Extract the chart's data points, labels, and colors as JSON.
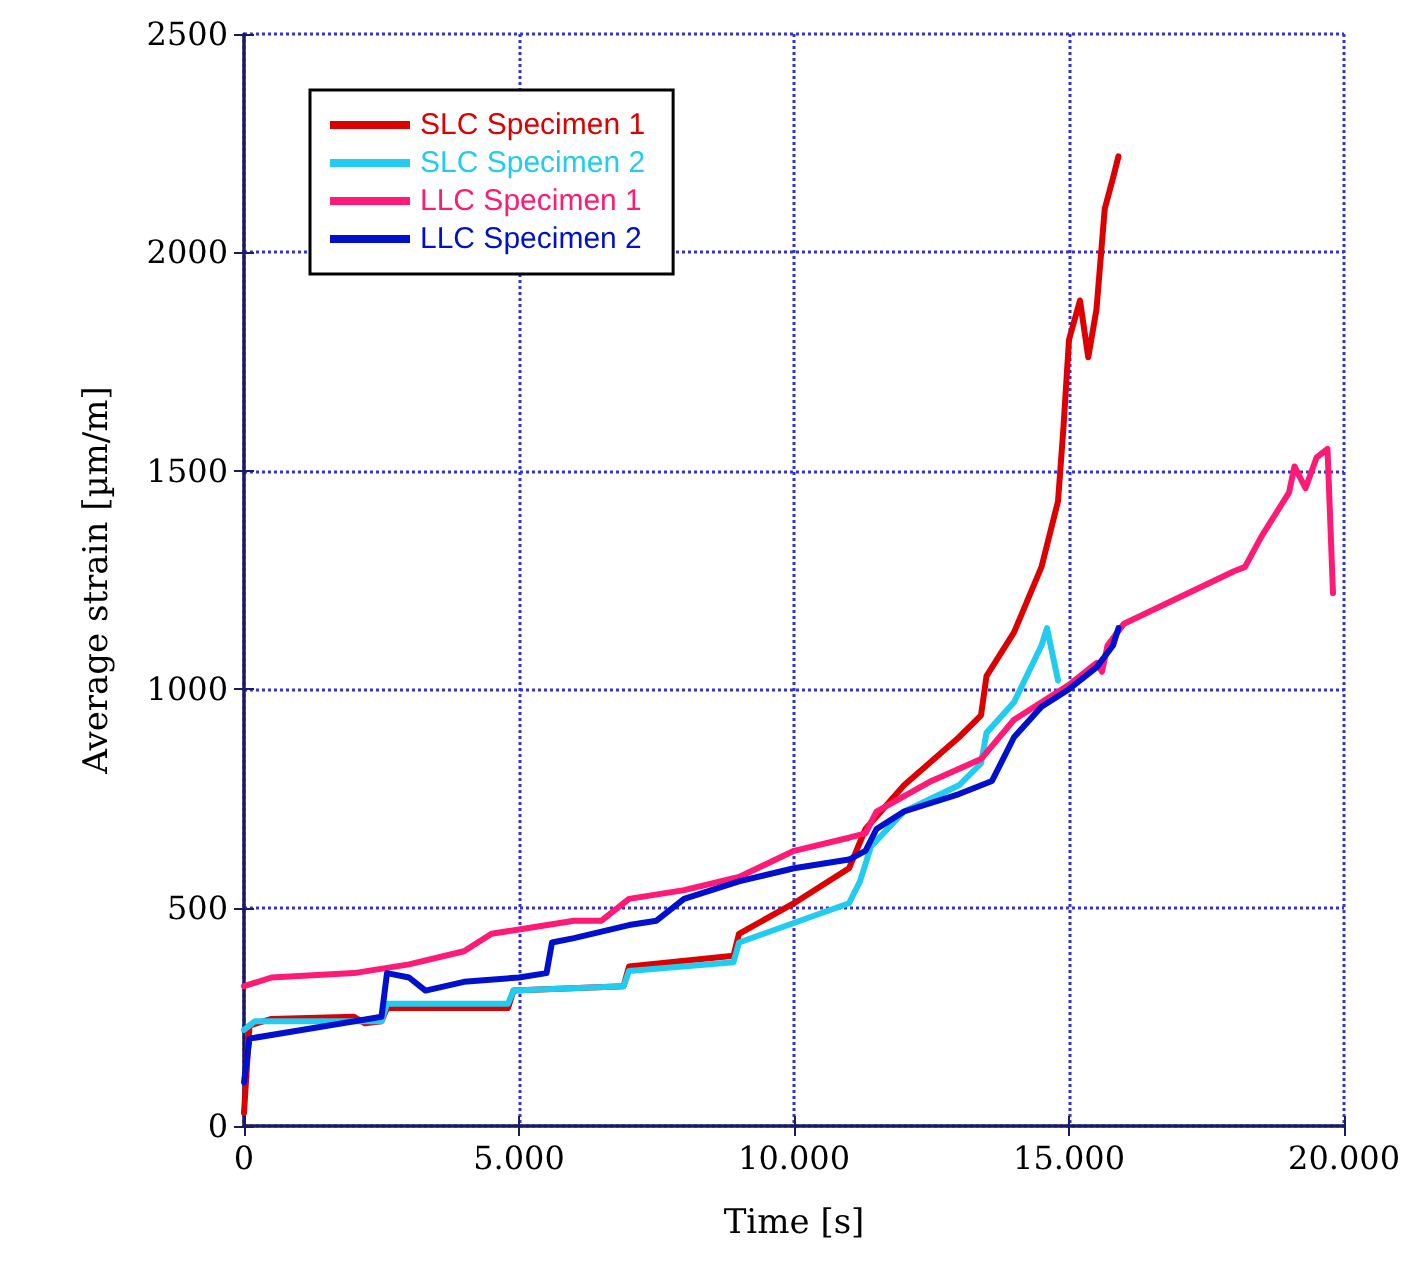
{
  "chart_data": {
    "type": "line",
    "xlabel": "Time [s]",
    "ylabel": "Average strain [µm/m]",
    "xlim": [
      0,
      20000
    ],
    "xticks": [
      0,
      {
        "value": 5000,
        "label": "5.000"
      },
      {
        "value": 10000,
        "label": "10.000"
      },
      {
        "value": 15000,
        "label": "15.000"
      },
      {
        "value": 20000,
        "label": "20.000"
      }
    ],
    "ylim": [
      0,
      2500
    ],
    "yticks": [
      0,
      500,
      1000,
      1500,
      2000,
      2500
    ],
    "grid": true,
    "legend": "top left",
    "marker": "none",
    "line_style": "solid",
    "series": [
      {
        "name": "SLC Specimen 1",
        "color": "#dd0000",
        "x": [
          0,
          100,
          500,
          2000,
          2200,
          2500,
          2600,
          4800,
          4900,
          6900,
          7000,
          8900,
          9000,
          10000,
          11000,
          11300,
          12000,
          13000,
          13400,
          13500,
          14000,
          14500,
          14800,
          14900,
          15000,
          15200,
          15350,
          15500,
          15650,
          15800,
          15900
        ],
        "values": [
          30,
          230,
          245,
          250,
          235,
          240,
          270,
          270,
          310,
          320,
          365,
          390,
          440,
          510,
          590,
          680,
          780,
          890,
          940,
          1030,
          1130,
          1280,
          1430,
          1600,
          1800,
          1890,
          1760,
          1870,
          2100,
          2170,
          2220
        ]
      },
      {
        "name": "SLC Specimen 2",
        "color": "#22ccf0",
        "x": [
          0,
          200,
          2500,
          2600,
          4800,
          4900,
          6900,
          7000,
          8900,
          9000,
          11000,
          11200,
          11400,
          12000,
          13000,
          13400,
          13500,
          14000,
          14500,
          14600,
          14800
        ],
        "values": [
          220,
          240,
          240,
          280,
          280,
          310,
          320,
          355,
          375,
          420,
          510,
          560,
          640,
          720,
          780,
          830,
          900,
          970,
          1100,
          1140,
          1020
        ]
      },
      {
        "name": "LLC Specimen 1",
        "color": "#ff1a75",
        "x": [
          0,
          500,
          2000,
          3000,
          4000,
          4500,
          5000,
          6000,
          6500,
          7000,
          8000,
          9000,
          10000,
          11000,
          11300,
          11500,
          12500,
          13400,
          14000,
          15000,
          15400,
          15500,
          15600,
          15700,
          16000,
          17000,
          18000,
          18200,
          18500,
          19000,
          19100,
          19300,
          19500,
          19700,
          19800
        ],
        "values": [
          320,
          340,
          350,
          370,
          400,
          440,
          450,
          470,
          470,
          520,
          540,
          570,
          630,
          660,
          670,
          720,
          790,
          840,
          930,
          1010,
          1050,
          1060,
          1040,
          1100,
          1150,
          1210,
          1270,
          1280,
          1350,
          1450,
          1510,
          1460,
          1530,
          1550,
          1220
        ]
      },
      {
        "name": "LLC Specimen 2",
        "color": "#0010cc",
        "x": [
          0,
          100,
          2500,
          2600,
          3000,
          3300,
          4000,
          5000,
          5500,
          5600,
          6000,
          7000,
          7500,
          8000,
          9000,
          10000,
          11000,
          11300,
          11500,
          12000,
          13000,
          13600,
          14000,
          14500,
          15000,
          15500,
          15800,
          15900
        ],
        "values": [
          100,
          200,
          250,
          350,
          340,
          310,
          330,
          340,
          350,
          420,
          430,
          460,
          470,
          520,
          560,
          590,
          610,
          630,
          680,
          720,
          760,
          790,
          890,
          960,
          1000,
          1050,
          1100,
          1140
        ]
      }
    ]
  }
}
